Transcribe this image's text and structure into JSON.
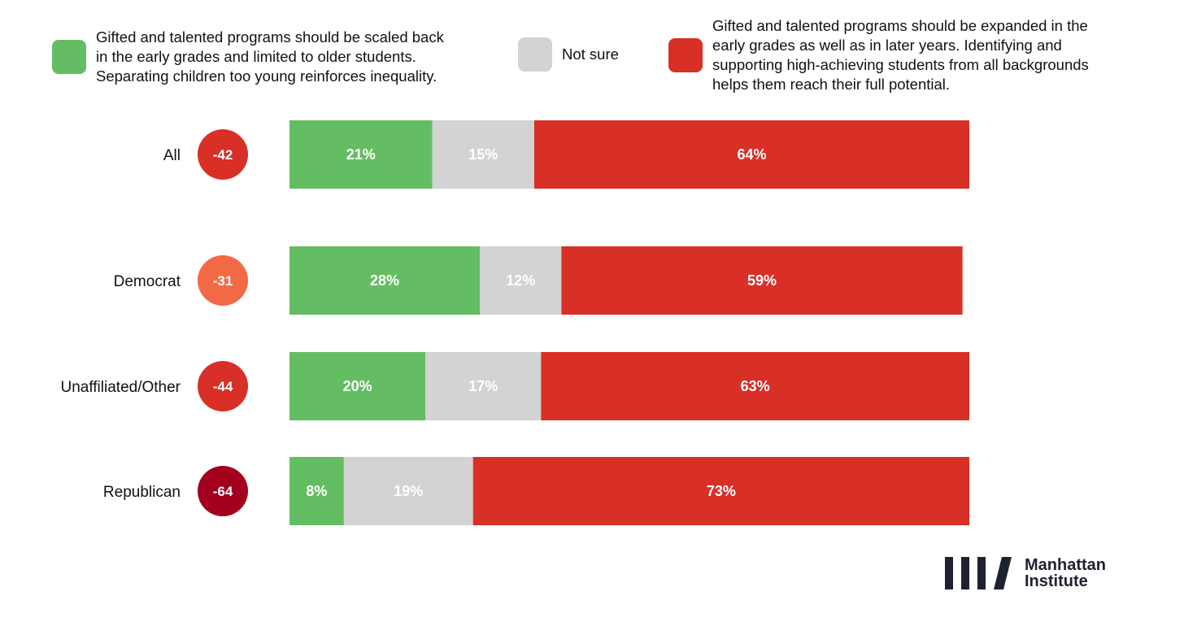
{
  "legend": [
    {
      "label": "Gifted and talented programs should be scaled back\nin the early grades and limited to older students.\nSeparating children too young reinforces inequality.",
      "color": "#64bd63"
    },
    {
      "label": "Not sure",
      "color": "#d3d3d3"
    },
    {
      "label": "Gifted and talented programs should be expanded in the\nearly grades as well as in later years. Identifying and\nsupporting high-achieving students from all backgrounds\nhelps them reach their full potential.",
      "color": "#d82f27"
    }
  ],
  "chart_data": {
    "type": "bar",
    "orientation": "horizontal",
    "stacked": true,
    "categories": [
      "All",
      "Democrat",
      "Unaffiliated/Other",
      "Republican"
    ],
    "series": [
      {
        "values": [
          21,
          28,
          20,
          8
        ],
        "labels": [
          "21%",
          "28%",
          "20%",
          "8%"
        ],
        "color": "#64bd63"
      },
      {
        "values": [
          15,
          12,
          17,
          19
        ],
        "labels": [
          "15%",
          "12%",
          "17%",
          "19%"
        ],
        "color": "#d3d3d3"
      },
      {
        "values": [
          64,
          59,
          63,
          73
        ],
        "labels": [
          "64%",
          "59%",
          "63%",
          "73%"
        ],
        "color": "#d82f27"
      }
    ],
    "net": [
      {
        "label": "-42",
        "color": "#d82f27"
      },
      {
        "label": "-31",
        "color": "#f26a45"
      },
      {
        "label": "-44",
        "color": "#d82f27"
      },
      {
        "label": "-64",
        "color": "#a3001e"
      }
    ],
    "xlim": [
      0,
      100
    ],
    "grid": false,
    "legend_position": "top"
  },
  "logo": {
    "text": "Manhattan\nInstitute",
    "color": "#1e2130"
  }
}
